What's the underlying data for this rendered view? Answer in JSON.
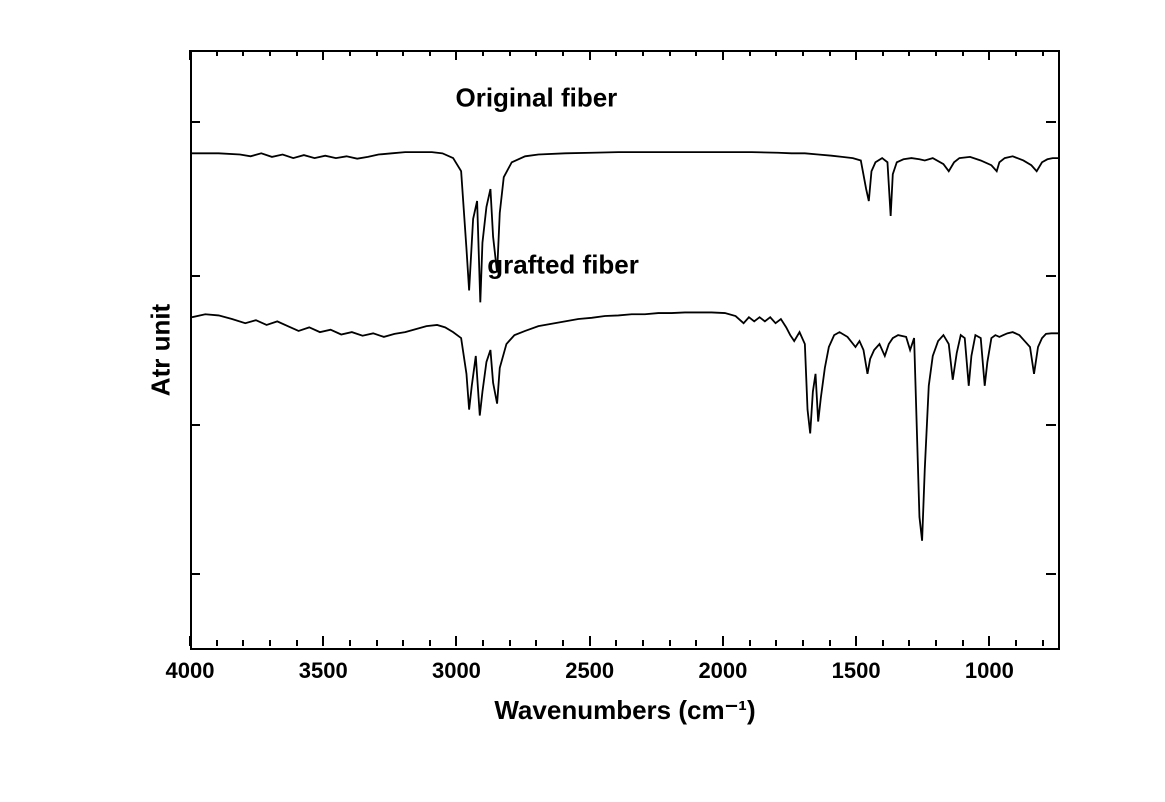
{
  "chart": {
    "type": "line",
    "background_color": "#ffffff",
    "line_color": "#000000",
    "line_width": 1.8,
    "border_color": "#000000",
    "border_width": 2,
    "xlabel": "Wavenumbers (cm⁻¹)",
    "ylabel": "Atr unit",
    "label_fontsize": 26,
    "label_fontweight": "bold",
    "tick_fontsize": 22,
    "tick_fontweight": "bold",
    "x_axis": {
      "min": 750,
      "max": 4000,
      "reversed": true,
      "major_ticks": [
        4000,
        3500,
        3000,
        2500,
        2000,
        1500,
        1000
      ],
      "minor_step": 100,
      "tick_length_major": 10,
      "tick_length_minor": 6
    },
    "y_axis": {
      "show_ticks": false,
      "show_labels": false,
      "major_tick_count": 4
    },
    "series": [
      {
        "name": "Original fiber",
        "label_x_wavenumber": 2700,
        "label_y_frac": 0.08,
        "baseline_y_frac": 0.17,
        "points": [
          [
            4000,
            0.17
          ],
          [
            3900,
            0.17
          ],
          [
            3820,
            0.172
          ],
          [
            3780,
            0.175
          ],
          [
            3740,
            0.17
          ],
          [
            3700,
            0.176
          ],
          [
            3660,
            0.172
          ],
          [
            3620,
            0.178
          ],
          [
            3580,
            0.173
          ],
          [
            3540,
            0.178
          ],
          [
            3500,
            0.174
          ],
          [
            3460,
            0.178
          ],
          [
            3420,
            0.175
          ],
          [
            3380,
            0.179
          ],
          [
            3340,
            0.176
          ],
          [
            3300,
            0.172
          ],
          [
            3250,
            0.17
          ],
          [
            3200,
            0.168
          ],
          [
            3150,
            0.168
          ],
          [
            3100,
            0.168
          ],
          [
            3060,
            0.17
          ],
          [
            3020,
            0.178
          ],
          [
            2990,
            0.2
          ],
          [
            2970,
            0.33
          ],
          [
            2960,
            0.4
          ],
          [
            2955,
            0.36
          ],
          [
            2945,
            0.28
          ],
          [
            2930,
            0.25
          ],
          [
            2918,
            0.42
          ],
          [
            2910,
            0.32
          ],
          [
            2895,
            0.26
          ],
          [
            2880,
            0.23
          ],
          [
            2870,
            0.31
          ],
          [
            2855,
            0.37
          ],
          [
            2845,
            0.27
          ],
          [
            2830,
            0.21
          ],
          [
            2800,
            0.185
          ],
          [
            2750,
            0.175
          ],
          [
            2700,
            0.172
          ],
          [
            2600,
            0.17
          ],
          [
            2500,
            0.169
          ],
          [
            2400,
            0.168
          ],
          [
            2300,
            0.168
          ],
          [
            2200,
            0.168
          ],
          [
            2100,
            0.168
          ],
          [
            2000,
            0.168
          ],
          [
            1900,
            0.168
          ],
          [
            1800,
            0.169
          ],
          [
            1750,
            0.17
          ],
          [
            1700,
            0.17
          ],
          [
            1650,
            0.172
          ],
          [
            1600,
            0.174
          ],
          [
            1560,
            0.176
          ],
          [
            1520,
            0.178
          ],
          [
            1490,
            0.182
          ],
          [
            1470,
            0.23
          ],
          [
            1460,
            0.25
          ],
          [
            1450,
            0.2
          ],
          [
            1435,
            0.185
          ],
          [
            1410,
            0.178
          ],
          [
            1390,
            0.185
          ],
          [
            1378,
            0.275
          ],
          [
            1370,
            0.205
          ],
          [
            1355,
            0.185
          ],
          [
            1330,
            0.18
          ],
          [
            1300,
            0.178
          ],
          [
            1270,
            0.18
          ],
          [
            1250,
            0.182
          ],
          [
            1220,
            0.178
          ],
          [
            1180,
            0.188
          ],
          [
            1160,
            0.2
          ],
          [
            1140,
            0.185
          ],
          [
            1120,
            0.178
          ],
          [
            1080,
            0.176
          ],
          [
            1040,
            0.182
          ],
          [
            1000,
            0.19
          ],
          [
            980,
            0.2
          ],
          [
            970,
            0.185
          ],
          [
            950,
            0.178
          ],
          [
            920,
            0.175
          ],
          [
            880,
            0.182
          ],
          [
            850,
            0.19
          ],
          [
            830,
            0.2
          ],
          [
            810,
            0.185
          ],
          [
            790,
            0.18
          ],
          [
            770,
            0.178
          ],
          [
            750,
            0.178
          ]
        ]
      },
      {
        "name": "grafted fiber",
        "label_x_wavenumber": 2600,
        "label_y_frac": 0.36,
        "baseline_y_frac": 0.45,
        "points": [
          [
            4000,
            0.445
          ],
          [
            3950,
            0.44
          ],
          [
            3900,
            0.442
          ],
          [
            3850,
            0.448
          ],
          [
            3800,
            0.455
          ],
          [
            3760,
            0.45
          ],
          [
            3720,
            0.458
          ],
          [
            3680,
            0.452
          ],
          [
            3640,
            0.46
          ],
          [
            3600,
            0.468
          ],
          [
            3560,
            0.462
          ],
          [
            3520,
            0.47
          ],
          [
            3480,
            0.466
          ],
          [
            3440,
            0.474
          ],
          [
            3400,
            0.47
          ],
          [
            3360,
            0.476
          ],
          [
            3320,
            0.472
          ],
          [
            3280,
            0.478
          ],
          [
            3240,
            0.473
          ],
          [
            3200,
            0.47
          ],
          [
            3160,
            0.465
          ],
          [
            3120,
            0.46
          ],
          [
            3080,
            0.458
          ],
          [
            3050,
            0.462
          ],
          [
            3020,
            0.47
          ],
          [
            2990,
            0.48
          ],
          [
            2970,
            0.54
          ],
          [
            2960,
            0.6
          ],
          [
            2950,
            0.56
          ],
          [
            2935,
            0.51
          ],
          [
            2920,
            0.61
          ],
          [
            2910,
            0.57
          ],
          [
            2895,
            0.52
          ],
          [
            2880,
            0.5
          ],
          [
            2870,
            0.555
          ],
          [
            2855,
            0.59
          ],
          [
            2845,
            0.53
          ],
          [
            2820,
            0.49
          ],
          [
            2790,
            0.475
          ],
          [
            2750,
            0.468
          ],
          [
            2700,
            0.46
          ],
          [
            2650,
            0.456
          ],
          [
            2600,
            0.452
          ],
          [
            2550,
            0.448
          ],
          [
            2500,
            0.446
          ],
          [
            2450,
            0.443
          ],
          [
            2400,
            0.442
          ],
          [
            2350,
            0.44
          ],
          [
            2300,
            0.44
          ],
          [
            2250,
            0.438
          ],
          [
            2200,
            0.438
          ],
          [
            2150,
            0.437
          ],
          [
            2100,
            0.437
          ],
          [
            2050,
            0.437
          ],
          [
            2000,
            0.438
          ],
          [
            1960,
            0.443
          ],
          [
            1930,
            0.455
          ],
          [
            1910,
            0.445
          ],
          [
            1890,
            0.452
          ],
          [
            1870,
            0.445
          ],
          [
            1850,
            0.452
          ],
          [
            1830,
            0.445
          ],
          [
            1810,
            0.455
          ],
          [
            1790,
            0.448
          ],
          [
            1770,
            0.462
          ],
          [
            1755,
            0.475
          ],
          [
            1740,
            0.485
          ],
          [
            1720,
            0.47
          ],
          [
            1700,
            0.49
          ],
          [
            1690,
            0.6
          ],
          [
            1680,
            0.64
          ],
          [
            1670,
            0.57
          ],
          [
            1660,
            0.54
          ],
          [
            1650,
            0.62
          ],
          [
            1640,
            0.58
          ],
          [
            1625,
            0.53
          ],
          [
            1610,
            0.495
          ],
          [
            1590,
            0.475
          ],
          [
            1570,
            0.47
          ],
          [
            1540,
            0.478
          ],
          [
            1510,
            0.495
          ],
          [
            1495,
            0.485
          ],
          [
            1480,
            0.5
          ],
          [
            1465,
            0.54
          ],
          [
            1455,
            0.515
          ],
          [
            1440,
            0.5
          ],
          [
            1420,
            0.49
          ],
          [
            1400,
            0.51
          ],
          [
            1385,
            0.49
          ],
          [
            1370,
            0.48
          ],
          [
            1350,
            0.475
          ],
          [
            1320,
            0.478
          ],
          [
            1305,
            0.5
          ],
          [
            1290,
            0.48
          ],
          [
            1270,
            0.78
          ],
          [
            1260,
            0.82
          ],
          [
            1250,
            0.7
          ],
          [
            1235,
            0.56
          ],
          [
            1220,
            0.51
          ],
          [
            1200,
            0.485
          ],
          [
            1180,
            0.475
          ],
          [
            1160,
            0.49
          ],
          [
            1145,
            0.55
          ],
          [
            1130,
            0.505
          ],
          [
            1115,
            0.475
          ],
          [
            1100,
            0.48
          ],
          [
            1085,
            0.56
          ],
          [
            1075,
            0.51
          ],
          [
            1060,
            0.475
          ],
          [
            1040,
            0.48
          ],
          [
            1025,
            0.56
          ],
          [
            1015,
            0.52
          ],
          [
            1000,
            0.48
          ],
          [
            985,
            0.475
          ],
          [
            970,
            0.478
          ],
          [
            955,
            0.475
          ],
          [
            940,
            0.472
          ],
          [
            920,
            0.47
          ],
          [
            895,
            0.475
          ],
          [
            875,
            0.485
          ],
          [
            855,
            0.495
          ],
          [
            840,
            0.54
          ],
          [
            825,
            0.495
          ],
          [
            810,
            0.48
          ],
          [
            795,
            0.473
          ],
          [
            775,
            0.472
          ],
          [
            755,
            0.472
          ],
          [
            750,
            0.472
          ]
        ]
      }
    ]
  }
}
